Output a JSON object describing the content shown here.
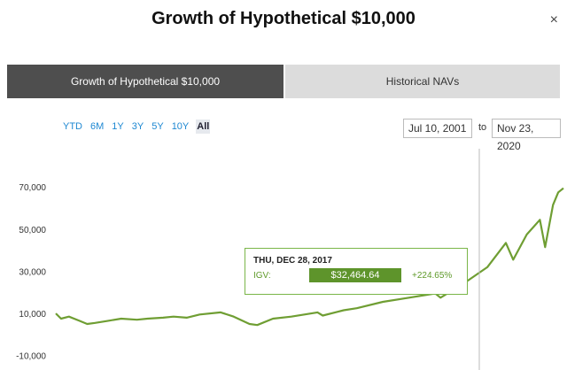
{
  "header": {
    "title": "Growth of Hypothetical $10,000",
    "close": "×"
  },
  "tabs": [
    "Growth of Hypothetical $10,000",
    "Historical NAVs"
  ],
  "ranges": [
    "YTD",
    "6M",
    "1Y",
    "3Y",
    "5Y",
    "10Y",
    "All"
  ],
  "date_from": "Jul 10, 2001",
  "date_sep": "to",
  "date_to": "Nov 23, 2020",
  "tooltip": {
    "date": "THU, DEC 28, 2017",
    "label": "IGV:",
    "value": "$32,464.64",
    "change": "+224.65%"
  },
  "chart_data": {
    "type": "line",
    "color": "#6f9e33",
    "x": [
      2001.5,
      2001.7,
      2002.0,
      2002.4,
      2002.7,
      2003.0,
      2003.5,
      2004.0,
      2004.6,
      2005.0,
      2005.6,
      2006.0,
      2006.5,
      2007.0,
      2007.8,
      2008.3,
      2008.9,
      2009.2,
      2009.8,
      2010.5,
      2011.5,
      2011.7,
      2012.5,
      2013.0,
      2014.0,
      2015.0,
      2016.0,
      2016.2,
      2017.0,
      2017.99,
      2018.7,
      2018.98,
      2019.5,
      2020.0,
      2020.2,
      2020.5,
      2020.7,
      2020.9
    ],
    "values": [
      10500,
      8000,
      9000,
      7000,
      5500,
      6000,
      7000,
      8000,
      7500,
      8000,
      8500,
      9000,
      8500,
      10000,
      11000,
      9000,
      5500,
      5000,
      8000,
      9000,
      11000,
      9500,
      12000,
      13000,
      16000,
      18000,
      20000,
      18000,
      24000,
      32465,
      44000,
      36000,
      48000,
      55000,
      42000,
      62000,
      68000,
      70000
    ],
    "xlim": [
      2001.5,
      2020.9
    ],
    "ylim": [
      -13000,
      90000
    ],
    "yticks": [
      {
        "value": -10000,
        "label": "-10,000"
      },
      {
        "value": 10000,
        "label": "10,000"
      },
      {
        "value": 30000,
        "label": "30,000"
      },
      {
        "value": 50000,
        "label": "50,000"
      },
      {
        "value": 70000,
        "label": "70,000"
      }
    ]
  }
}
